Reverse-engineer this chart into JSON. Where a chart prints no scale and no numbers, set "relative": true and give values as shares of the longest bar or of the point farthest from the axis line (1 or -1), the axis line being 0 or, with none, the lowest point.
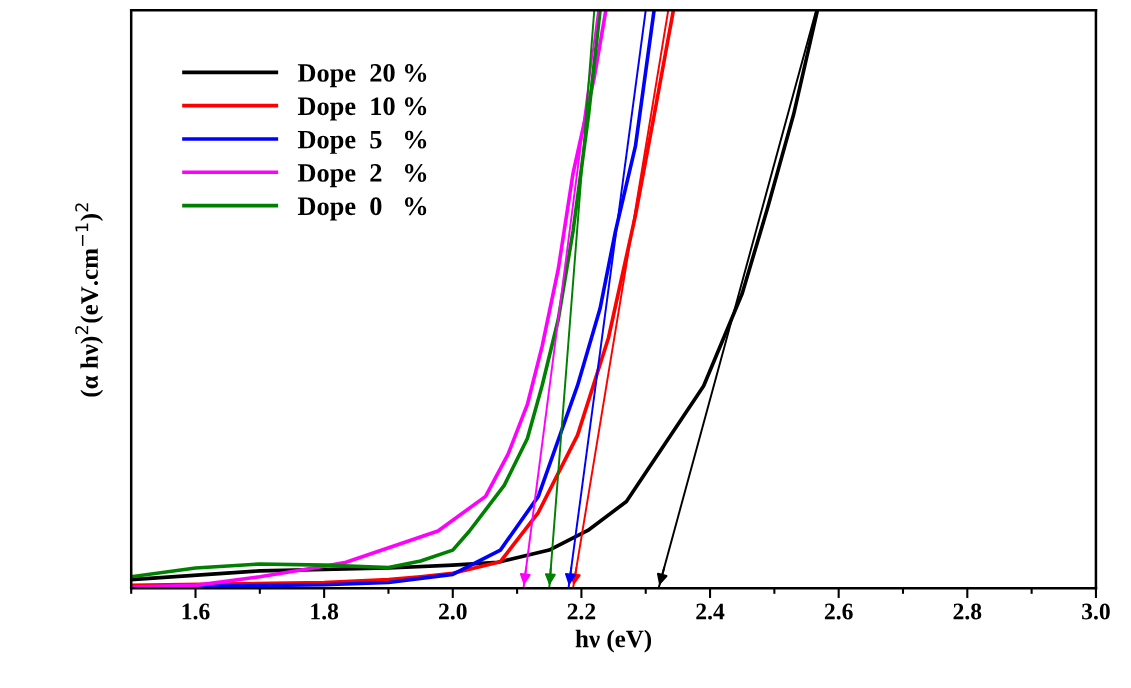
{
  "chart_data": {
    "type": "line",
    "relative": true,
    "xlabel": "hν (eV)",
    "ylabel": "(α hν)$^{2}$(eV.cm$^{−1}$)$^{2}$",
    "xlim": [
      1.5,
      3.0
    ],
    "xticks": [
      {
        "value": 1.5,
        "label": null
      },
      1.6,
      {
        "value": 1.7,
        "label": null
      },
      1.8,
      {
        "value": 1.9,
        "label": null
      },
      {
        "value": 2.0,
        "label": "2.0"
      },
      {
        "value": 2.1,
        "label": null
      },
      2.2,
      {
        "value": 2.3,
        "label": null
      },
      2.4,
      {
        "value": 2.5,
        "label": null
      },
      2.6,
      {
        "value": 2.7,
        "label": null
      },
      2.8,
      {
        "value": 2.9,
        "label": null
      },
      {
        "value": 3.0,
        "label": "3.0"
      }
    ],
    "tick_labels": "x",
    "grid": false,
    "legend": "top left",
    "line_style": "solid",
    "marker": "none",
    "series": [
      {
        "name": "Dope  20 %",
        "color": "#000000",
        "x": [
          1.5,
          1.7,
          1.9,
          2.0,
          2.07,
          2.15,
          2.21,
          2.27,
          2.33,
          2.39,
          2.45,
          2.49,
          2.53,
          2.567
        ],
        "values": [
          0.015,
          0.03,
          0.035,
          0.04,
          0.045,
          0.066,
          0.1,
          0.15,
          0.25,
          0.35,
          0.51,
          0.66,
          0.82,
          1.0
        ]
      },
      {
        "name": "Dope  10 %",
        "color": "#ff0000",
        "x": [
          1.5,
          1.8,
          1.9,
          1.95,
          2.0,
          2.074,
          2.133,
          2.194,
          2.242,
          2.284,
          2.313,
          2.343
        ],
        "values": [
          0.005,
          0.01,
          0.015,
          0.02,
          0.026,
          0.046,
          0.131,
          0.265,
          0.433,
          0.645,
          0.818,
          1.0
        ]
      },
      {
        "name": "Dope  5   %",
        "color": "#0000ff",
        "x": [
          1.5,
          1.8,
          1.9,
          2.0,
          2.074,
          2.133,
          2.194,
          2.229,
          2.253,
          2.284,
          2.313
        ],
        "values": [
          0.002,
          0.006,
          0.01,
          0.024,
          0.066,
          0.159,
          0.351,
          0.484,
          0.618,
          0.765,
          1.0
        ]
      },
      {
        "name": "Dope  2   %",
        "color": "#ff00ff",
        "x": [
          1.5,
          1.6,
          1.7,
          1.8,
          1.834,
          1.977,
          2.051,
          2.086,
          2.116,
          2.139,
          2.164,
          2.187,
          2.22,
          2.238
        ],
        "values": [
          0.002,
          0.005,
          0.02,
          0.038,
          0.045,
          0.099,
          0.159,
          0.232,
          0.318,
          0.419,
          0.552,
          0.718,
          0.884,
          1.0
        ]
      },
      {
        "name": "Dope  0   %",
        "color": "#008000",
        "x": [
          1.5,
          1.6,
          1.7,
          1.8,
          1.9,
          1.95,
          2.0,
          2.026,
          2.08,
          2.116,
          2.139,
          2.164,
          2.187,
          2.211,
          2.229
        ],
        "values": [
          0.02,
          0.035,
          0.042,
          0.04,
          0.036,
          0.047,
          0.066,
          0.099,
          0.178,
          0.259,
          0.351,
          0.465,
          0.618,
          0.818,
          1.0
        ]
      },
      {
        "color": "#000000",
        "x": [
          2.32,
          2.565
        ],
        "values": [
          0.0,
          1.0
        ]
      },
      {
        "color": "#ff0000",
        "x": [
          2.187,
          2.335
        ],
        "values": [
          0.0,
          1.0
        ]
      },
      {
        "color": "#0000ff",
        "x": [
          2.18,
          2.3
        ],
        "values": [
          0.0,
          1.0
        ]
      },
      {
        "color": "#ff00ff",
        "x": [
          2.11,
          2.226
        ],
        "values": [
          0.0,
          1.0
        ]
      },
      {
        "color": "#008000",
        "x": [
          2.15,
          2.22
        ],
        "values": [
          0.0,
          1.0
        ]
      }
    ]
  }
}
